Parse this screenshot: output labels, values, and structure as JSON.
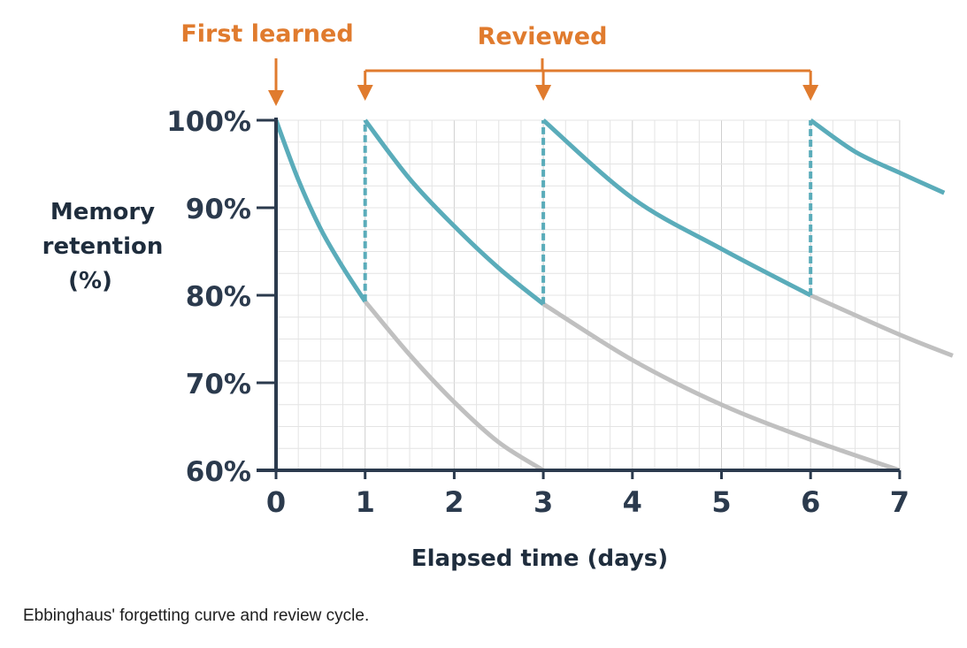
{
  "caption": "Ebbinghaus' forgetting curve and review cycle.",
  "chart_data": {
    "type": "line",
    "title": "",
    "xlabel": "Elapsed time (days)",
    "ylabel": "Memory retention (%)",
    "xlim": [
      0,
      7
    ],
    "ylim": [
      60,
      100
    ],
    "x_ticks": [
      0,
      1,
      2,
      3,
      4,
      5,
      6,
      7
    ],
    "y_ticks": [
      {
        "value": 60,
        "label": "60%"
      },
      {
        "value": 70,
        "label": "70%"
      },
      {
        "value": 80,
        "label": "80%"
      },
      {
        "value": 90,
        "label": "90%"
      },
      {
        "value": 100,
        "label": "100%"
      }
    ],
    "grid": true,
    "annotations": {
      "first_learned": {
        "label": "First learned",
        "x": 0
      },
      "reviewed": {
        "label": "Reviewed",
        "x": [
          1,
          3,
          6
        ]
      }
    },
    "series": [
      {
        "role": "retention with review",
        "color": "#5aacba",
        "style": "solid",
        "segments": [
          {
            "x": [
              0,
              0.25,
              0.5,
              0.75,
              1
            ],
            "y": [
              100,
              93.2,
              87.6,
              83.2,
              79.3
            ]
          },
          {
            "x": [
              1,
              1.5,
              2,
              2.5,
              3
            ],
            "y": [
              100,
              93.3,
              87.9,
              83.1,
              79.0
            ]
          },
          {
            "x": [
              3,
              4,
              5,
              6
            ],
            "y": [
              100,
              91.1,
              85.3,
              80.0
            ]
          },
          {
            "x": [
              6,
              6.5,
              7,
              7.5
            ],
            "y": [
              100,
              96.4,
              94.0,
              91.7
            ]
          }
        ]
      },
      {
        "role": "retention without review",
        "color": "#c0c0c0",
        "style": "solid",
        "segments": [
          {
            "x": [
              1,
              1.5,
              2,
              2.5,
              3
            ],
            "y": [
              79.3,
              73.2,
              67.8,
              63.2,
              60.0
            ]
          },
          {
            "x": [
              3,
              4,
              5,
              6,
              7
            ],
            "y": [
              79.0,
              72.6,
              67.5,
              63.5,
              60.0
            ]
          },
          {
            "x": [
              6,
              7,
              7.6
            ],
            "y": [
              80.0,
              75.5,
              73.1
            ]
          }
        ]
      },
      {
        "role": "review jump",
        "color": "#5aacba",
        "style": "dashed",
        "segments": [
          {
            "x": [
              1,
              1
            ],
            "y": [
              79.3,
              100
            ]
          },
          {
            "x": [
              3,
              3
            ],
            "y": [
              79.0,
              100
            ]
          },
          {
            "x": [
              6,
              6
            ],
            "y": [
              80.0,
              100
            ]
          }
        ]
      }
    ],
    "colors": {
      "accent": "#e07b2e",
      "axis": "#2b3a4d",
      "grid": "#e4e4e4"
    }
  }
}
